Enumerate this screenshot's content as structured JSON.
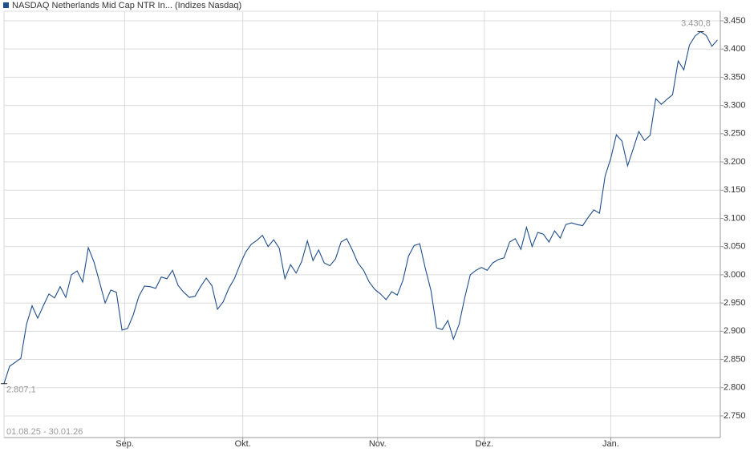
{
  "chart_data": {
    "type": "line",
    "title": "NASDAQ Netherlands Mid Cap NTR In... (Indizes Nasdaq)",
    "date_range": "01.08.25 - 30.01.26",
    "high_label": "3.430,8",
    "low_label": "2.807,1",
    "series": [
      {
        "name": "NASDAQ Netherlands Mid Cap NTR In...",
        "color": "#1f4e8c",
        "values": [
          2807.1,
          2838,
          2845,
          2852,
          2912,
          2945,
          2923,
          2945,
          2966,
          2959,
          2979,
          2960,
          3000,
          3007,
          2987,
          3048,
          3023,
          2987,
          2950,
          2973,
          2969,
          2902,
          2905,
          2929,
          2962,
          2980,
          2979,
          2976,
          2996,
          2993,
          3008,
          2981,
          2969,
          2960,
          2962,
          2979,
          2994,
          2981,
          2939,
          2952,
          2976,
          2993,
          3018,
          3040,
          3054,
          3061,
          3070,
          3050,
          3062,
          3047,
          2993,
          3018,
          3003,
          3024,
          3060,
          3025,
          3044,
          3021,
          3016,
          3028,
          3058,
          3064,
          3044,
          3021,
          3008,
          2987,
          2974,
          2966,
          2956,
          2970,
          2964,
          2990,
          3033,
          3052,
          3055,
          3011,
          2972,
          2906,
          2903,
          2919,
          2886,
          2912,
          2959,
          3000,
          3008,
          3013,
          3008,
          3021,
          3027,
          3030,
          3058,
          3064,
          3045,
          3084,
          3050,
          3075,
          3072,
          3058,
          3078,
          3065,
          3089,
          3092,
          3089,
          3087,
          3102,
          3115,
          3109,
          3175,
          3206,
          3248,
          3237,
          3193,
          3223,
          3254,
          3238,
          3247,
          3312,
          3302,
          3311,
          3319,
          3379,
          3363,
          3407,
          3423,
          3430.8,
          3424,
          3405,
          3416
        ]
      }
    ],
    "xlim": [
      0,
      127.5
    ],
    "xticks": [
      {
        "value": 21.5,
        "label": "Sep."
      },
      {
        "value": 42.5,
        "label": "Okt."
      },
      {
        "value": 66.5,
        "label": "Nov."
      },
      {
        "value": 85.5,
        "label": "Dez."
      },
      {
        "value": 108,
        "label": "Jan."
      }
    ],
    "ylim": [
      2711.6,
      3467
    ],
    "yticks": [
      {
        "value": 2750,
        "label": "2.750"
      },
      {
        "value": 2800,
        "label": "2.800"
      },
      {
        "value": 2850,
        "label": "2.850"
      },
      {
        "value": 2900,
        "label": "2.900"
      },
      {
        "value": 2950,
        "label": "2.950"
      },
      {
        "value": 3000,
        "label": "3.000"
      },
      {
        "value": 3050,
        "label": "3.050"
      },
      {
        "value": 3100,
        "label": "3.100"
      },
      {
        "value": 3150,
        "label": "3.150"
      },
      {
        "value": 3200,
        "label": "3.200"
      },
      {
        "value": 3250,
        "label": "3.250"
      },
      {
        "value": 3300,
        "label": "3.300"
      },
      {
        "value": 3350,
        "label": "3.350"
      },
      {
        "value": 3400,
        "label": "3.400"
      },
      {
        "value": 3450,
        "label": "3.450"
      }
    ],
    "grid": true
  }
}
